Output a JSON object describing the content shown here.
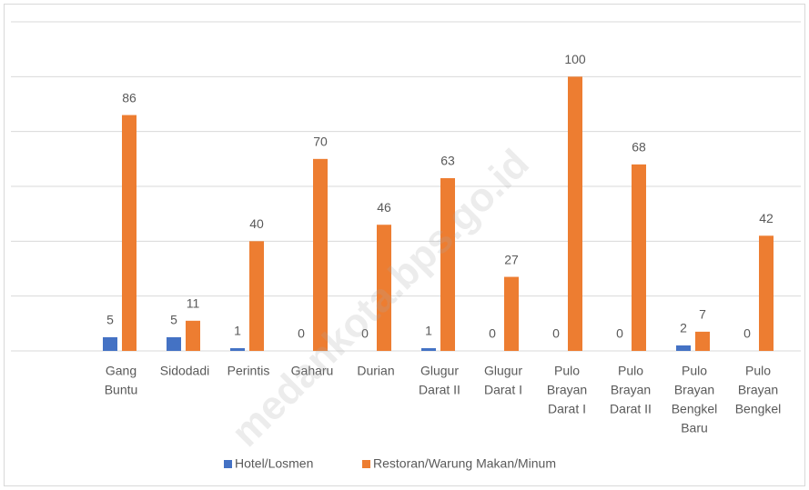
{
  "chart_data": {
    "type": "bar",
    "categories": [
      [
        "Gang",
        "Buntu"
      ],
      [
        "Sidodadi"
      ],
      [
        "Perintis"
      ],
      [
        "Gaharu"
      ],
      [
        "Durian"
      ],
      [
        "Glugur",
        "Darat II"
      ],
      [
        "Glugur",
        "Darat I"
      ],
      [
        "Pulo",
        "Brayan",
        "Darat I"
      ],
      [
        "Pulo",
        "Brayan",
        "Darat II"
      ],
      [
        "Pulo",
        "Brayan",
        "Bengkel",
        "Baru"
      ],
      [
        "Pulo",
        "Brayan",
        "Bengkel"
      ]
    ],
    "series": [
      {
        "name": "Hotel/Losmen",
        "color": "#4472c4",
        "values": [
          5,
          5,
          1,
          0,
          0,
          1,
          0,
          0,
          0,
          2,
          0
        ]
      },
      {
        "name": "Restoran/Warung Makan/Minum",
        "color": "#ed7d31",
        "values": [
          86,
          11,
          40,
          70,
          46,
          63,
          27,
          100,
          68,
          7,
          42
        ]
      }
    ],
    "ylim": [
      0,
      120
    ],
    "yticks": [
      0,
      20,
      40,
      60,
      80,
      100,
      120
    ],
    "grid": true,
    "legend": "bottom",
    "watermark": "medankota.bps.go.id"
  }
}
